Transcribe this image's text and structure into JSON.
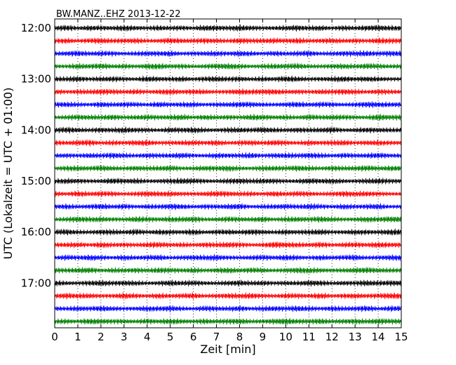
{
  "chart_data": {
    "type": "line",
    "title": "BW.MANZ..EHZ 2013-12-22",
    "xlabel": "Zeit  [min]",
    "ylabel": "UTC (Lokalzeit = UTC + 01:00)",
    "xlim": [
      0,
      15
    ],
    "x_ticks": [
      "0",
      "1",
      "2",
      "3",
      "4",
      "5",
      "6",
      "7",
      "8",
      "9",
      "10",
      "11",
      "12",
      "13",
      "14",
      "15"
    ],
    "y_tick_labels": [
      "12:00",
      "13:00",
      "14:00",
      "15:00",
      "16:00",
      "17:00"
    ],
    "y_tick_rows": [
      0,
      4,
      8,
      12,
      16,
      20
    ],
    "row_interval_minutes": 15,
    "row_count": 24,
    "grid": "vertical dotted at each minute",
    "series_colors": [
      "#000000",
      "#ff0000",
      "#0000ff",
      "#008000"
    ],
    "series": [
      {
        "values": [
          0.6,
          0.9,
          0.5,
          0.8,
          0.7,
          0.6,
          0.9,
          0.7,
          0.5,
          0.8,
          0.6,
          0.7,
          0.5,
          0.9,
          0.8,
          0.6,
          0.9,
          0.7,
          0.5,
          0.6,
          0.7,
          0.9,
          0.6,
          0.8,
          0.5,
          0.7,
          0.6,
          0.8,
          0.9,
          0.7
        ]
      },
      {
        "values": [
          0.6,
          0.8,
          0.5,
          0.7,
          0.9,
          0.6,
          0.7,
          0.8,
          0.5,
          0.6,
          0.9,
          0.7,
          0.6,
          0.8,
          0.7,
          0.5,
          0.9,
          0.6,
          0.7,
          0.8,
          0.6,
          0.9,
          0.5,
          0.7,
          0.8,
          0.6,
          0.7,
          0.5,
          0.9,
          0.7
        ]
      },
      {
        "values": [
          0.5,
          0.7,
          0.9,
          0.6,
          0.8,
          0.7,
          0.5,
          0.6,
          0.8,
          0.7,
          0.9,
          0.5,
          0.6,
          0.7,
          0.8,
          0.6,
          0.9,
          0.7,
          0.5,
          0.8,
          0.6,
          0.7,
          0.9,
          0.5,
          0.6,
          0.8,
          0.7,
          0.9,
          0.6,
          0.8
        ]
      },
      {
        "values": [
          0.6,
          0.5,
          0.8,
          0.7,
          0.9,
          0.6,
          0.7,
          0.5,
          0.8,
          0.9,
          0.6,
          0.7,
          0.5,
          0.6,
          0.8,
          0.9,
          0.7,
          0.5,
          0.6,
          0.8,
          0.7,
          0.9,
          0.6,
          0.5,
          0.7,
          0.8,
          0.6,
          0.9,
          0.7,
          0.6
        ]
      },
      {
        "values": [
          0.7,
          0.6,
          0.9,
          0.5,
          0.7,
          0.8,
          0.6,
          0.5,
          0.9,
          0.7,
          0.6,
          0.8,
          0.5,
          0.7,
          0.9,
          0.6,
          0.8,
          0.5,
          0.7,
          0.6,
          0.9,
          0.8,
          0.5,
          0.6,
          0.7,
          0.9,
          0.6,
          0.8,
          0.7,
          0.5
        ]
      },
      {
        "values": [
          0.8,
          0.5,
          0.7,
          0.6,
          0.9,
          0.7,
          0.6,
          0.8,
          0.5,
          0.7,
          0.9,
          0.6,
          0.8,
          0.7,
          0.5,
          0.6,
          0.9,
          0.7,
          0.8,
          0.9,
          0.6,
          0.7,
          0.5,
          0.8,
          0.6,
          0.9,
          0.7,
          0.5,
          0.8,
          0.6
        ]
      },
      {
        "values": [
          0.7,
          0.8,
          0.6,
          0.5,
          0.9,
          0.6,
          0.8,
          0.7,
          0.5,
          0.9,
          0.6,
          0.7,
          0.8,
          0.5,
          0.6,
          0.7,
          0.9,
          0.8,
          0.6,
          0.5,
          0.7,
          0.9,
          0.6,
          0.8,
          0.7,
          0.5,
          0.6,
          0.9,
          0.8,
          0.7
        ]
      },
      {
        "values": [
          0.5,
          0.6,
          0.8,
          0.7,
          0.6,
          0.9,
          0.5,
          0.7,
          0.8,
          0.6,
          0.7,
          0.9,
          0.5,
          0.8,
          0.6,
          0.7,
          0.5,
          0.9,
          0.8,
          0.6,
          0.7,
          0.5,
          0.9,
          0.6,
          0.8,
          0.7,
          0.6,
          0.5,
          1.0,
          0.7
        ]
      },
      {
        "values": [
          0.6,
          0.9,
          0.7,
          0.5,
          0.8,
          0.6,
          0.9,
          0.7,
          0.6,
          0.5,
          0.8,
          0.7,
          0.9,
          0.6,
          0.5,
          0.7,
          0.8,
          0.6,
          0.9,
          0.7,
          0.5,
          0.8,
          0.6,
          0.7,
          0.9,
          0.5,
          0.6,
          0.8,
          0.7,
          0.6
        ]
      },
      {
        "values": [
          0.7,
          0.6,
          0.8,
          0.9,
          0.5,
          0.7,
          0.6,
          0.8,
          0.9,
          0.5,
          0.6,
          0.7,
          0.8,
          0.6,
          0.9,
          0.5,
          0.7,
          0.8,
          0.6,
          0.9,
          0.7,
          0.5,
          0.8,
          0.6,
          0.7,
          0.9,
          0.5,
          0.7,
          0.8,
          0.6
        ]
      },
      {
        "values": [
          0.6,
          0.7,
          0.5,
          0.8,
          0.6,
          0.9,
          0.7,
          0.5,
          0.8,
          0.6,
          0.7,
          0.9,
          0.6,
          0.5,
          0.8,
          0.7,
          0.6,
          0.9,
          0.5,
          0.7,
          0.8,
          0.6,
          0.9,
          0.7,
          0.5,
          0.8,
          0.6,
          0.7,
          0.9,
          0.6
        ]
      },
      {
        "values": [
          0.5,
          0.7,
          0.8,
          0.6,
          0.9,
          0.7,
          0.5,
          0.8,
          0.6,
          0.7,
          0.9,
          0.5,
          0.6,
          0.8,
          0.7,
          0.9,
          0.6,
          0.5,
          0.7,
          0.8,
          0.6,
          0.9,
          0.7,
          0.5,
          0.8,
          0.6,
          0.7,
          0.9,
          0.6,
          0.8
        ]
      },
      {
        "values": [
          0.6,
          0.8,
          0.7,
          0.5,
          0.6,
          0.9,
          0.7,
          0.8,
          0.5,
          0.6,
          0.7,
          0.9,
          0.8,
          0.6,
          0.5,
          0.7,
          0.9,
          0.6,
          0.8,
          0.7,
          0.5,
          0.6,
          0.9,
          0.7,
          0.8,
          0.6,
          0.5,
          0.7,
          0.9,
          0.6
        ]
      },
      {
        "values": [
          0.7,
          0.5,
          0.9,
          0.6,
          0.8,
          0.7,
          0.5,
          0.6,
          0.9,
          0.7,
          0.8,
          0.6,
          0.5,
          0.7,
          0.9,
          0.8,
          0.6,
          0.7,
          0.5,
          0.9,
          0.6,
          0.8,
          0.7,
          0.5,
          0.6,
          0.9,
          0.7,
          0.8,
          0.6,
          0.5
        ]
      },
      {
        "values": [
          0.6,
          0.8,
          0.5,
          0.7,
          0.9,
          0.6,
          0.8,
          0.5,
          0.7,
          0.6,
          0.9,
          0.8,
          0.5,
          0.7,
          0.6,
          0.8,
          0.9,
          0.5,
          0.6,
          0.7,
          0.8,
          0.6,
          0.9,
          0.7,
          0.5,
          0.8,
          0.6,
          0.7,
          0.9,
          0.5
        ]
      },
      {
        "values": [
          0.5,
          0.6,
          0.9,
          0.7,
          0.8,
          0.6,
          0.5,
          0.9,
          0.7,
          0.6,
          0.8,
          0.7,
          0.9,
          0.5,
          0.6,
          0.8,
          0.7,
          0.6,
          0.9,
          0.5,
          0.7,
          0.8,
          0.6,
          0.9,
          0.7,
          0.5,
          0.6,
          0.8,
          0.7,
          0.9
        ]
      },
      {
        "values": [
          0.7,
          0.9,
          0.6,
          0.5,
          0.8,
          0.7,
          0.6,
          0.9,
          0.5,
          0.8,
          0.7,
          0.6,
          0.9,
          0.5,
          0.7,
          0.8,
          0.6,
          0.9,
          0.7,
          0.5,
          0.8,
          0.6,
          0.7,
          0.9,
          0.5,
          0.6,
          0.8,
          0.7,
          0.6,
          0.9
        ]
      },
      {
        "values": [
          0.6,
          0.7,
          0.8,
          0.5,
          0.9,
          0.6,
          0.7,
          0.5,
          0.8,
          0.9,
          0.6,
          0.7,
          0.5,
          0.8,
          0.6,
          0.9,
          0.7,
          0.5,
          0.6,
          1.0,
          0.8,
          0.7,
          0.6,
          0.9,
          0.5,
          0.7,
          0.8,
          0.6,
          0.9,
          0.7
        ]
      },
      {
        "values": [
          0.5,
          0.8,
          0.6,
          0.9,
          0.7,
          0.5,
          0.8,
          0.6,
          0.7,
          0.9,
          0.5,
          0.6,
          0.8,
          0.7,
          0.9,
          0.6,
          0.5,
          0.7,
          0.8,
          0.6,
          0.9,
          0.7,
          0.5,
          0.8,
          0.6,
          0.7,
          0.9,
          0.5,
          0.6,
          0.8
        ]
      },
      {
        "values": [
          0.7,
          0.6,
          0.8,
          0.9,
          0.5,
          0.7,
          0.6,
          0.8,
          0.5,
          0.9,
          0.7,
          0.6,
          0.8,
          0.5,
          0.7,
          0.9,
          0.6,
          0.8,
          0.7,
          0.5,
          0.6,
          0.9,
          0.8,
          0.7,
          0.5,
          0.6,
          0.8,
          0.9,
          0.7,
          0.6
        ]
      },
      {
        "values": [
          0.8,
          0.6,
          0.5,
          0.7,
          0.9,
          0.6,
          0.8,
          0.7,
          0.5,
          0.6,
          0.9,
          0.7,
          0.8,
          0.6,
          0.5,
          0.7,
          0.9,
          0.6,
          0.8,
          0.5,
          0.7,
          0.6,
          0.9,
          0.8,
          0.5,
          0.7,
          0.6,
          0.9,
          0.7,
          0.8
        ]
      },
      {
        "values": [
          0.6,
          0.9,
          0.7,
          0.8,
          0.5,
          0.6,
          0.9,
          0.7,
          0.5,
          0.8,
          0.6,
          0.7,
          0.9,
          0.5,
          0.6,
          0.8,
          0.7,
          0.9,
          0.6,
          0.5,
          0.8,
          0.7,
          0.6,
          0.9,
          0.5,
          0.7,
          0.8,
          0.6,
          0.7,
          0.9
        ]
      },
      {
        "values": [
          0.7,
          0.5,
          0.8,
          0.6,
          0.9,
          0.7,
          0.5,
          0.6,
          0.8,
          0.7,
          0.9,
          0.6,
          0.5,
          0.8,
          0.7,
          0.6,
          0.9,
          0.5,
          0.7,
          0.8,
          0.6,
          0.9,
          0.7,
          0.5,
          0.8,
          0.6,
          0.7,
          0.9,
          0.5,
          0.8
        ]
      },
      {
        "values": [
          0.6,
          0.7,
          0.5,
          0.9,
          0.8,
          0.6,
          0.7,
          0.5,
          0.8,
          0.6,
          0.9,
          0.7,
          0.5,
          0.8,
          0.6,
          0.7,
          0.9,
          0.5,
          0.6,
          0.8,
          1.0,
          0.7,
          0.6,
          0.9,
          0.5,
          0.7,
          0.8,
          0.6,
          0.9,
          0.7
        ]
      }
    ]
  }
}
